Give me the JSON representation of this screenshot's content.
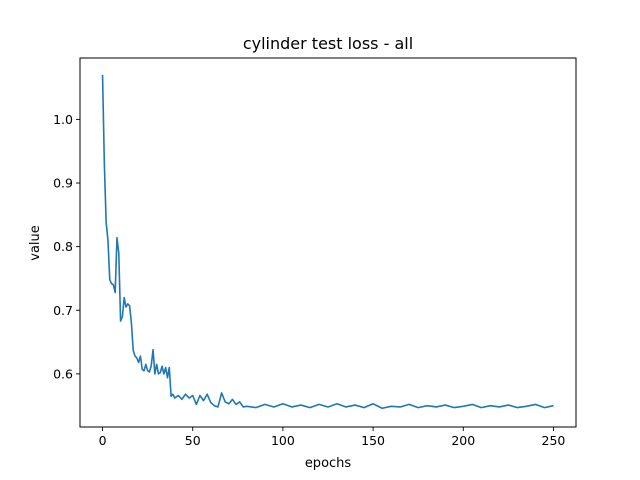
{
  "chart_data": {
    "type": "line",
    "title": "cylinder test loss - all",
    "xlabel": "epochs",
    "ylabel": "value",
    "xlim": [
      -12.5,
      262.5
    ],
    "ylim": [
      0.5165,
      1.0965
    ],
    "xticks": [
      0,
      50,
      100,
      150,
      200,
      250
    ],
    "yticks": [
      0.6,
      0.7,
      0.8,
      0.9,
      1.0
    ],
    "xtick_labels": [
      "0",
      "50",
      "100",
      "150",
      "200",
      "250"
    ],
    "ytick_labels": [
      "0.6",
      "0.7",
      "0.8",
      "0.9",
      "1.0"
    ],
    "grid": false,
    "legend": "none",
    "line_color": "#1f77b4",
    "series": [
      {
        "x": [
          0,
          1,
          2,
          3,
          4,
          5,
          6,
          7,
          8,
          9,
          10,
          11,
          12,
          13,
          14,
          15,
          16,
          17,
          18,
          19,
          20,
          21,
          22,
          23,
          24,
          25,
          26,
          27,
          28,
          29,
          30,
          31,
          32,
          33,
          34,
          35,
          36,
          37,
          38,
          39,
          40,
          42,
          44,
          46,
          48,
          50,
          52,
          54,
          56,
          58,
          60,
          62,
          64,
          66,
          68,
          70,
          72,
          74,
          76,
          78,
          80,
          85,
          90,
          95,
          100,
          105,
          110,
          115,
          120,
          125,
          130,
          135,
          140,
          145,
          150,
          155,
          160,
          165,
          170,
          175,
          180,
          185,
          190,
          195,
          200,
          205,
          210,
          215,
          220,
          225,
          230,
          235,
          240,
          245,
          250
        ],
        "values": [
          1.07,
          0.93,
          0.838,
          0.81,
          0.748,
          0.742,
          0.74,
          0.728,
          0.814,
          0.79,
          0.683,
          0.69,
          0.72,
          0.705,
          0.71,
          0.707,
          0.68,
          0.637,
          0.628,
          0.625,
          0.618,
          0.628,
          0.607,
          0.605,
          0.615,
          0.605,
          0.603,
          0.613,
          0.638,
          0.6,
          0.615,
          0.6,
          0.602,
          0.612,
          0.6,
          0.61,
          0.594,
          0.61,
          0.565,
          0.568,
          0.562,
          0.566,
          0.56,
          0.568,
          0.562,
          0.566,
          0.552,
          0.566,
          0.558,
          0.568,
          0.555,
          0.55,
          0.548,
          0.57,
          0.556,
          0.553,
          0.56,
          0.552,
          0.556,
          0.548,
          0.549,
          0.547,
          0.552,
          0.548,
          0.553,
          0.548,
          0.551,
          0.547,
          0.552,
          0.548,
          0.553,
          0.548,
          0.551,
          0.547,
          0.553,
          0.546,
          0.549,
          0.548,
          0.552,
          0.547,
          0.55,
          0.548,
          0.551,
          0.547,
          0.549,
          0.552,
          0.547,
          0.55,
          0.548,
          0.551,
          0.547,
          0.549,
          0.552,
          0.547,
          0.55
        ]
      }
    ]
  }
}
